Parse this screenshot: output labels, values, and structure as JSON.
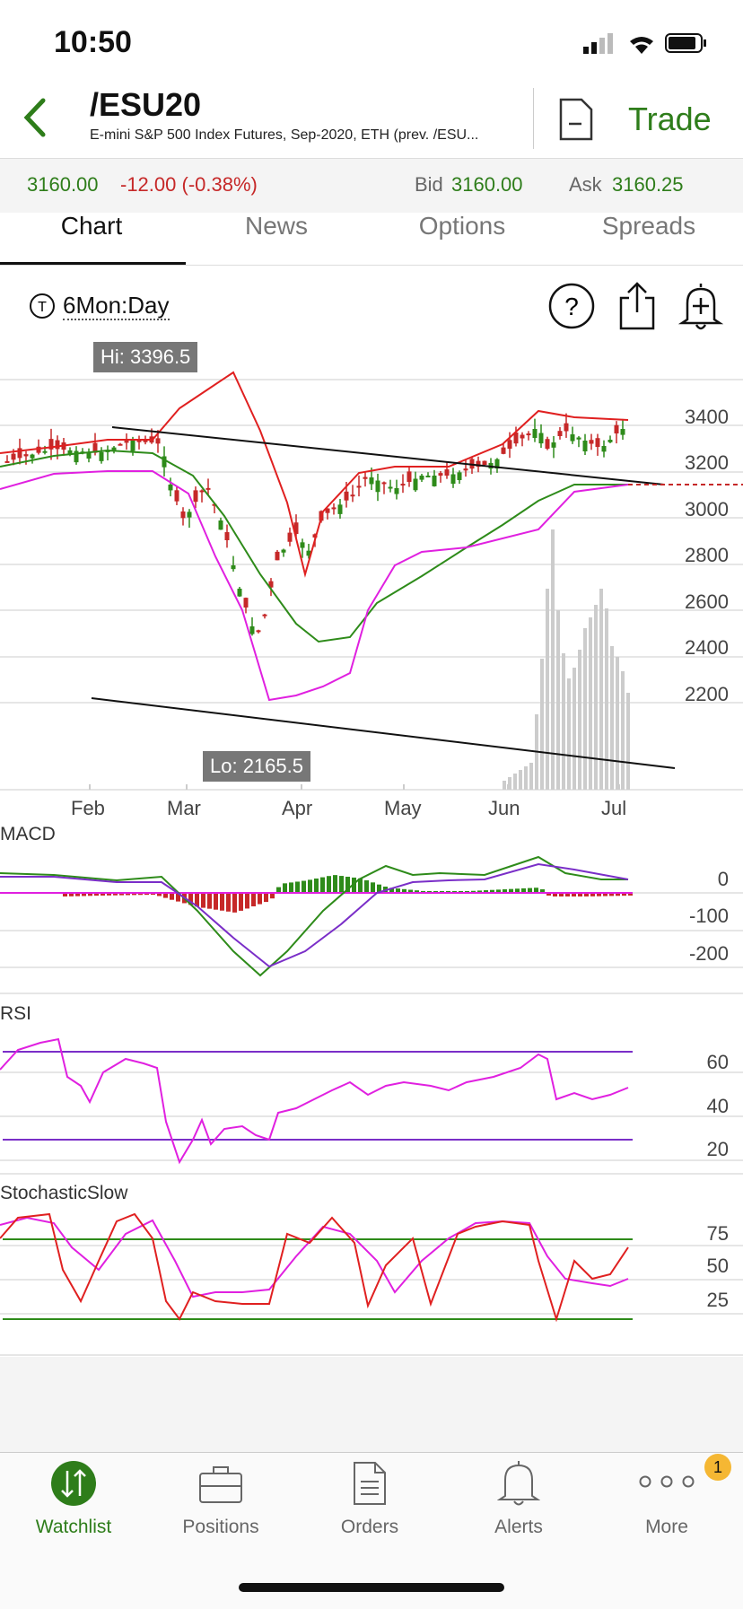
{
  "status": {
    "time": "10:50"
  },
  "header": {
    "symbol": "/ESU20",
    "subtitle": "E-mini S&P 500 Index Futures, Sep-2020, ETH (prev. /ESU...",
    "trade_label": "Trade"
  },
  "quote": {
    "last": "3160.00",
    "change": "-12.00 (-0.38%)",
    "bid_label": "Bid",
    "bid": "3160.00",
    "ask_label": "Ask",
    "ask": "3160.25"
  },
  "tabs": [
    {
      "label": "Chart"
    },
    {
      "label": "News"
    },
    {
      "label": "Options"
    },
    {
      "label": "Spreads"
    }
  ],
  "chart_toolbar": {
    "timeframe": "6Mon:Day",
    "timeframe_icon": "T",
    "help": "?"
  },
  "price_panel": {
    "hi": "Hi: 3396.5",
    "lo": "Lo: 2165.5",
    "y_labels": [
      "3400",
      "3200",
      "3000",
      "2800",
      "2600",
      "2400",
      "2200"
    ],
    "x_labels": [
      "Feb",
      "Mar",
      "Apr",
      "May",
      "Jun",
      "Jul"
    ]
  },
  "macd": {
    "label": "MACD",
    "y_labels": [
      "0",
      "-100",
      "-200"
    ]
  },
  "rsi": {
    "label": "RSI",
    "y_labels": [
      "60",
      "40",
      "20"
    ]
  },
  "stoch": {
    "label": "StochasticSlow",
    "y_labels": [
      "75",
      "50",
      "25"
    ]
  },
  "colors": {
    "green": "#2e8b1a",
    "red": "#e02020",
    "magenta": "#e020e0",
    "purple": "#7a2ec8",
    "accent": "#2e7d1a"
  },
  "bottom_nav": {
    "items": [
      {
        "label": "Watchlist",
        "icon": "watchlist-icon"
      },
      {
        "label": "Positions",
        "icon": "briefcase-icon"
      },
      {
        "label": "Orders",
        "icon": "document-icon"
      },
      {
        "label": "Alerts",
        "icon": "bell-icon"
      },
      {
        "label": "More",
        "icon": "more-icon"
      }
    ],
    "more_badge": "1"
  },
  "chart_data": {
    "type": "line",
    "x": [
      "Feb",
      "Mar",
      "Apr",
      "May",
      "Jun",
      "Jul"
    ],
    "series": [
      {
        "values": [
          3250,
          3300,
          2400,
          2850,
          3100,
          3160
        ]
      },
      {
        "values": [
          3230,
          3180,
          2500,
          2750,
          3000,
          3080
        ]
      },
      {
        "values": [
          3350,
          3350,
          3000,
          2950,
          3200,
          3220
        ]
      },
      {
        "values": [
          3150,
          3050,
          2150,
          2600,
          2850,
          2990
        ]
      }
    ],
    "ylim": [
      2000,
      3500
    ],
    "hi": 3396.5,
    "lo": 2165.5
  }
}
